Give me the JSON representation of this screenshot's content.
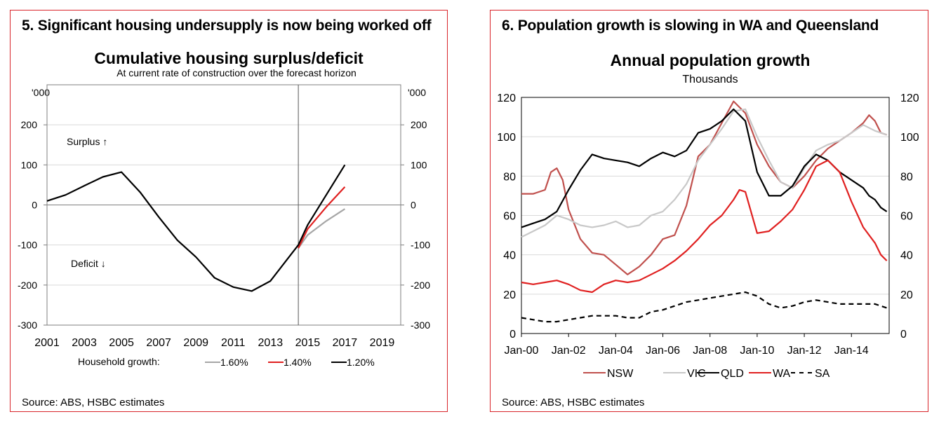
{
  "panels": [
    {
      "heading": "5. Significant housing undersupply is now being worked off",
      "source": "Source: ABS, HSBC estimates",
      "chart_data": {
        "type": "line",
        "title": "Cumulative housing surplus/deficit",
        "subtitle": "At current rate of construction over the forecast horizon",
        "y_unit_left": "'000",
        "y_unit_right": "'000",
        "ylim": [
          -300,
          300
        ],
        "yticks": [
          "-300",
          "-200",
          "-100",
          "0",
          "100",
          "200"
        ],
        "xlim": [
          2001,
          2020
        ],
        "xticks": [
          "2001",
          "2003",
          "2005",
          "2007",
          "2009",
          "2011",
          "2013",
          "2015",
          "2017",
          "2019"
        ],
        "forecast_marker_x": 2014.5,
        "annotations": {
          "surplus": "Surplus ↑",
          "deficit": "Deficit ↓"
        },
        "legend_title": "Household growth:",
        "grid": true,
        "series": [
          {
            "name": "1.60%",
            "color": "#a6a6a6",
            "x": [
              2014.5,
              2015,
              2016,
              2017
            ],
            "y": [
              -108,
              -75,
              -40,
              -10
            ]
          },
          {
            "name": "1.40%",
            "color": "#e02020",
            "x": [
              2014.5,
              2015,
              2016,
              2017
            ],
            "y": [
              -108,
              -60,
              -5,
              45
            ]
          },
          {
            "name": "1.20%",
            "color": "#000000",
            "x": [
              2001,
              2002,
              2003,
              2004,
              2005,
              2006,
              2007,
              2008,
              2009,
              2010,
              2011,
              2012,
              2013,
              2014,
              2014.5,
              2015,
              2016,
              2017
            ],
            "y": [
              10,
              25,
              48,
              70,
              82,
              32,
              -30,
              -88,
              -130,
              -182,
              -205,
              -215,
              -190,
              -130,
              -100,
              -50,
              25,
              100
            ]
          }
        ]
      }
    },
    {
      "heading": "6. Population growth is slowing in WA and Queensland",
      "source": "Source: ABS, HSBC estimates",
      "chart_data": {
        "type": "line",
        "title": "Annual population growth",
        "subtitle": "Thousands",
        "ylim": [
          0,
          120
        ],
        "yticks": [
          "0",
          "20",
          "40",
          "60",
          "80",
          "100",
          "120"
        ],
        "xlim": [
          0,
          15.6
        ],
        "xticks": [
          "Jan-00",
          "Jan-02",
          "Jan-04",
          "Jan-06",
          "Jan-08",
          "Jan-10",
          "Jan-12",
          "Jan-14"
        ],
        "grid": true,
        "series": [
          {
            "name": "NSW",
            "color": "#c0504d",
            "dash": "",
            "x": [
              0,
              0.5,
              1,
              1.25,
              1.5,
              1.75,
              2,
              2.5,
              3,
              3.5,
              4,
              4.5,
              5,
              5.5,
              6,
              6.5,
              7,
              7.5,
              8,
              8.5,
              9,
              9.5,
              10,
              10.5,
              11,
              11.5,
              12,
              12.5,
              13,
              13.5,
              14,
              14.5,
              14.75,
              15,
              15.25,
              15.5
            ],
            "y": [
              71,
              71,
              73,
              82,
              84,
              78,
              63,
              48,
              41,
              40,
              35,
              30,
              34,
              40,
              48,
              50,
              65,
              90,
              96,
              107,
              118,
              112,
              96,
              85,
              77,
              74,
              80,
              88,
              94,
              98,
              102,
              107,
              111,
              108,
              102,
              101
            ]
          },
          {
            "name": "VIC",
            "color": "#c8c8c8",
            "dash": "",
            "x": [
              0,
              0.5,
              1,
              1.5,
              2,
              2.5,
              3,
              3.5,
              4,
              4.5,
              5,
              5.5,
              6,
              6.5,
              7,
              7.5,
              8,
              8.5,
              9,
              9.5,
              10,
              10.5,
              11,
              11.5,
              12,
              12.5,
              13,
              13.5,
              14,
              14.5,
              15,
              15.5
            ],
            "y": [
              49,
              52,
              55,
              60,
              58,
              55,
              54,
              55,
              57,
              54,
              55,
              60,
              62,
              68,
              76,
              88,
              96,
              104,
              113,
              114,
              100,
              88,
              77,
              74,
              84,
              93,
              96,
              98,
              102,
              106,
              103,
              101
            ]
          },
          {
            "name": "QLD",
            "color": "#000000",
            "dash": "",
            "x": [
              0,
              0.5,
              1,
              1.5,
              2,
              2.5,
              3,
              3.5,
              4,
              4.5,
              5,
              5.5,
              6,
              6.5,
              7,
              7.5,
              8,
              8.5,
              9,
              9.5,
              10,
              10.5,
              11,
              11.5,
              12,
              12.5,
              13,
              13.5,
              14,
              14.5,
              14.75,
              15,
              15.25,
              15.5
            ],
            "y": [
              54,
              56,
              58,
              62,
              73,
              83,
              91,
              89,
              88,
              87,
              85,
              89,
              92,
              90,
              93,
              102,
              104,
              108,
              114,
              108,
              82,
              70,
              70,
              75,
              85,
              91,
              88,
              82,
              78,
              74,
              70,
              68,
              64,
              62
            ]
          },
          {
            "name": "WA",
            "color": "#e02020",
            "dash": "",
            "x": [
              0,
              0.5,
              1,
              1.5,
              2,
              2.5,
              3,
              3.5,
              4,
              4.5,
              5,
              5.5,
              6,
              6.5,
              7,
              7.5,
              8,
              8.5,
              9,
              9.25,
              9.5,
              10,
              10.5,
              11,
              11.5,
              12,
              12.5,
              13,
              13.5,
              14,
              14.5,
              15,
              15.25,
              15.5
            ],
            "y": [
              26,
              25,
              26,
              27,
              25,
              22,
              21,
              25,
              27,
              26,
              27,
              30,
              33,
              37,
              42,
              48,
              55,
              60,
              68,
              73,
              72,
              51,
              52,
              57,
              63,
              73,
              85,
              88,
              82,
              67,
              54,
              46,
              40,
              37
            ]
          },
          {
            "name": "SA",
            "color": "#000000",
            "dash": "7,5",
            "x": [
              0,
              0.5,
              1,
              1.5,
              2,
              2.5,
              3,
              3.5,
              4,
              4.5,
              5,
              5.5,
              6,
              6.5,
              7,
              7.5,
              8,
              8.5,
              9,
              9.5,
              10,
              10.5,
              11,
              11.5,
              12,
              12.5,
              13,
              13.5,
              14,
              14.5,
              15,
              15.5
            ],
            "y": [
              8,
              7,
              6,
              6,
              7,
              8,
              9,
              9,
              9,
              8,
              8,
              11,
              12,
              14,
              16,
              17,
              18,
              19,
              20,
              21,
              19,
              15,
              13,
              14,
              16,
              17,
              16,
              15,
              15,
              15,
              15,
              13
            ]
          }
        ]
      }
    }
  ]
}
